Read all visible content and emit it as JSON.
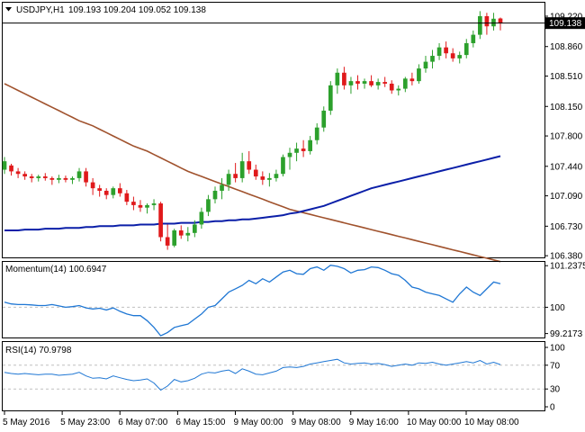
{
  "header": {
    "symbol": "USDJPY,H1",
    "ohlc": "109.193 109.204 109.052 109.138"
  },
  "price_tag": "109.138",
  "indicators": {
    "momentum_label": "Momentum(14) 100.6947",
    "rsi_label": "RSI(14) 70.9798"
  },
  "colors": {
    "bull": "#2ca02c",
    "bear": "#e0191b",
    "ma_slow": "#a0522d",
    "ma_fast": "#0b1fa8",
    "indicator": "#1f77d4"
  },
  "chart_data": [
    {
      "type": "candlestick",
      "x_tick_labels": [
        "5 May 2016",
        "5 May 23:00",
        "6 May 07:00",
        "6 May 15:00",
        "9 May 00:00",
        "9 May 08:00",
        "9 May 16:00",
        "10 May 00:00",
        "10 May 08:00"
      ],
      "y_tick_labels": [
        "109.220",
        "108.860",
        "108.510",
        "108.150",
        "107.800",
        "107.440",
        "107.090",
        "106.730",
        "106.380"
      ],
      "ylim": [
        106.36,
        109.38
      ],
      "current_price": 109.138,
      "candles": [
        [
          107.4,
          107.55,
          107.35,
          107.5
        ],
        [
          107.45,
          107.47,
          107.33,
          107.38
        ],
        [
          107.38,
          107.42,
          107.3,
          107.35
        ],
        [
          107.35,
          107.38,
          107.28,
          107.32
        ],
        [
          107.32,
          107.35,
          107.25,
          107.3
        ],
        [
          107.3,
          107.34,
          107.26,
          107.32
        ],
        [
          107.32,
          107.36,
          107.27,
          107.3
        ],
        [
          107.3,
          107.32,
          107.22,
          107.28
        ],
        [
          107.28,
          107.34,
          107.24,
          107.3
        ],
        [
          107.3,
          107.33,
          107.25,
          107.28
        ],
        [
          107.28,
          107.32,
          107.23,
          107.3
        ],
        [
          107.3,
          107.42,
          107.26,
          107.38
        ],
        [
          107.38,
          107.42,
          107.2,
          107.25
        ],
        [
          107.25,
          107.3,
          107.1,
          107.18
        ],
        [
          107.18,
          107.22,
          107.08,
          107.15
        ],
        [
          107.15,
          107.18,
          107.05,
          107.1
        ],
        [
          107.1,
          107.2,
          107.06,
          107.18
        ],
        [
          107.18,
          107.24,
          107.08,
          107.12
        ],
        [
          107.12,
          107.16,
          106.98,
          107.02
        ],
        [
          107.02,
          107.08,
          106.92,
          106.98
        ],
        [
          106.98,
          107.04,
          106.9,
          106.95
        ],
        [
          106.95,
          107.0,
          106.88,
          106.98
        ],
        [
          106.98,
          107.05,
          106.92,
          107.0
        ],
        [
          107.0,
          107.02,
          106.55,
          106.6
        ],
        [
          106.6,
          106.75,
          106.45,
          106.5
        ],
        [
          106.5,
          106.7,
          106.48,
          106.68
        ],
        [
          106.68,
          106.74,
          106.58,
          106.62
        ],
        [
          106.62,
          106.72,
          106.55,
          106.65
        ],
        [
          106.65,
          106.8,
          106.6,
          106.75
        ],
        [
          106.75,
          106.95,
          106.7,
          106.9
        ],
        [
          106.9,
          107.1,
          106.85,
          107.05
        ],
        [
          107.05,
          107.2,
          107.0,
          107.15
        ],
        [
          107.15,
          107.3,
          107.05,
          107.22
        ],
        [
          107.22,
          107.4,
          107.15,
          107.35
        ],
        [
          107.35,
          107.48,
          107.25,
          107.3
        ],
        [
          107.3,
          107.6,
          107.25,
          107.5
        ],
        [
          107.5,
          107.62,
          107.35,
          107.4
        ],
        [
          107.4,
          107.46,
          107.28,
          107.32
        ],
        [
          107.32,
          107.38,
          107.22,
          107.28
        ],
        [
          107.28,
          107.36,
          107.2,
          107.3
        ],
        [
          107.3,
          107.4,
          107.26,
          107.35
        ],
        [
          107.35,
          107.58,
          107.32,
          107.55
        ],
        [
          107.55,
          107.66,
          107.4,
          107.6
        ],
        [
          107.6,
          107.72,
          107.5,
          107.65
        ],
        [
          107.65,
          107.75,
          107.55,
          107.62
        ],
        [
          107.62,
          107.8,
          107.58,
          107.75
        ],
        [
          107.75,
          107.95,
          107.7,
          107.9
        ],
        [
          107.9,
          108.15,
          107.85,
          108.1
        ],
        [
          108.1,
          108.45,
          108.05,
          108.4
        ],
        [
          108.4,
          108.6,
          108.3,
          108.55
        ],
        [
          108.55,
          108.62,
          108.35,
          108.4
        ],
        [
          108.4,
          108.5,
          108.3,
          108.45
        ],
        [
          108.45,
          108.52,
          108.35,
          108.42
        ],
        [
          108.42,
          108.48,
          108.36,
          108.45
        ],
        [
          108.45,
          108.52,
          108.38,
          108.4
        ],
        [
          108.4,
          108.48,
          108.35,
          108.44
        ],
        [
          108.44,
          108.5,
          108.38,
          108.42
        ],
        [
          108.42,
          108.46,
          108.3,
          108.34
        ],
        [
          108.34,
          108.4,
          108.28,
          108.36
        ],
        [
          108.36,
          108.5,
          108.32,
          108.48
        ],
        [
          108.48,
          108.55,
          108.4,
          108.45
        ],
        [
          108.45,
          108.65,
          108.42,
          108.6
        ],
        [
          108.6,
          108.75,
          108.55,
          108.68
        ],
        [
          108.68,
          108.82,
          108.6,
          108.75
        ],
        [
          108.75,
          108.9,
          108.7,
          108.85
        ],
        [
          108.85,
          108.92,
          108.72,
          108.78
        ],
        [
          108.78,
          108.84,
          108.68,
          108.72
        ],
        [
          108.72,
          108.8,
          108.66,
          108.76
        ],
        [
          108.76,
          108.95,
          108.72,
          108.9
        ],
        [
          108.9,
          109.05,
          108.85,
          109.0
        ],
        [
          109.0,
          109.28,
          108.95,
          109.22
        ],
        [
          109.22,
          109.26,
          109.0,
          109.1
        ],
        [
          109.1,
          109.26,
          109.05,
          109.19
        ],
        [
          109.193,
          109.204,
          109.052,
          109.138
        ]
      ],
      "ma_slow": [
        108.42,
        108.38,
        108.34,
        108.3,
        108.26,
        108.22,
        108.18,
        108.14,
        108.1,
        108.06,
        108.02,
        107.98,
        107.95,
        107.92,
        107.88,
        107.84,
        107.8,
        107.76,
        107.72,
        107.68,
        107.65,
        107.62,
        107.58,
        107.54,
        107.5,
        107.46,
        107.42,
        107.38,
        107.35,
        107.32,
        107.29,
        107.26,
        107.23,
        107.2,
        107.17,
        107.14,
        107.11,
        107.08,
        107.05,
        107.02,
        106.99,
        106.96,
        106.93,
        106.91,
        106.89,
        106.87,
        106.85,
        106.83,
        106.81,
        106.79,
        106.77,
        106.75,
        106.73,
        106.71,
        106.69,
        106.67,
        106.65,
        106.63,
        106.61,
        106.59,
        106.57,
        106.55,
        106.53,
        106.51,
        106.49,
        106.47,
        106.45,
        106.43,
        106.41,
        106.39,
        106.37,
        106.35,
        106.33,
        106.31
      ],
      "ma_fast": [
        106.68,
        106.68,
        106.68,
        106.69,
        106.69,
        106.69,
        106.7,
        106.7,
        106.7,
        106.71,
        106.71,
        106.71,
        106.72,
        106.72,
        106.73,
        106.73,
        106.73,
        106.74,
        106.74,
        106.74,
        106.75,
        106.75,
        106.75,
        106.76,
        106.76,
        106.76,
        106.77,
        106.77,
        106.77,
        106.78,
        106.78,
        106.79,
        106.79,
        106.8,
        106.8,
        106.81,
        106.81,
        106.82,
        106.83,
        106.84,
        106.85,
        106.86,
        106.88,
        106.89,
        106.91,
        106.93,
        106.95,
        106.97,
        107.0,
        107.03,
        107.06,
        107.09,
        107.12,
        107.15,
        107.18,
        107.2,
        107.22,
        107.24,
        107.26,
        107.28,
        107.3,
        107.32,
        107.34,
        107.36,
        107.38,
        107.4,
        107.42,
        107.44,
        107.46,
        107.48,
        107.5,
        107.52,
        107.54,
        107.56
      ]
    },
    {
      "type": "line",
      "title": "Momentum(14) 100.6947",
      "y_tick_labels": [
        "101.2375",
        "100",
        "99.2173"
      ],
      "ylim": [
        99.1,
        101.35
      ],
      "values": [
        100.15,
        100.1,
        100.08,
        100.08,
        100.07,
        100.05,
        100.05,
        100.08,
        100.04,
        100.0,
        100.02,
        100.05,
        99.98,
        99.95,
        99.97,
        99.92,
        99.98,
        99.88,
        99.8,
        99.75,
        99.75,
        99.6,
        99.4,
        99.15,
        99.25,
        99.4,
        99.45,
        99.5,
        99.65,
        99.8,
        100.0,
        100.05,
        100.25,
        100.45,
        100.55,
        100.65,
        100.8,
        100.7,
        100.85,
        100.75,
        100.9,
        101.05,
        101.1,
        101.0,
        100.98,
        101.15,
        101.2,
        101.1,
        101.25,
        101.22,
        101.15,
        101.02,
        101.1,
        101.12,
        101.2,
        101.18,
        101.1,
        101.0,
        100.95,
        100.8,
        100.6,
        100.55,
        100.45,
        100.4,
        100.35,
        100.25,
        100.15,
        100.4,
        100.6,
        100.45,
        100.35,
        100.55,
        100.75,
        100.7
      ]
    },
    {
      "type": "line",
      "title": "RSI(14) 70.9798",
      "y_tick_labels": [
        "100",
        "70",
        "30",
        "0"
      ],
      "ylim": [
        0,
        100
      ],
      "guide_levels": [
        70,
        30
      ],
      "values": [
        58,
        56,
        55,
        56,
        55,
        54,
        55,
        55,
        53,
        54,
        55,
        58,
        52,
        48,
        49,
        47,
        52,
        49,
        46,
        44,
        45,
        47,
        40,
        28,
        35,
        46,
        42,
        44,
        48,
        55,
        58,
        57,
        60,
        62,
        56,
        64,
        60,
        55,
        54,
        57,
        60,
        66,
        67,
        66,
        68,
        72,
        74,
        76,
        78,
        80,
        74,
        72,
        73,
        74,
        72,
        73,
        71,
        68,
        70,
        72,
        70,
        74,
        73,
        75,
        72,
        70,
        72,
        74,
        76,
        74,
        78,
        72,
        75,
        71
      ]
    }
  ]
}
